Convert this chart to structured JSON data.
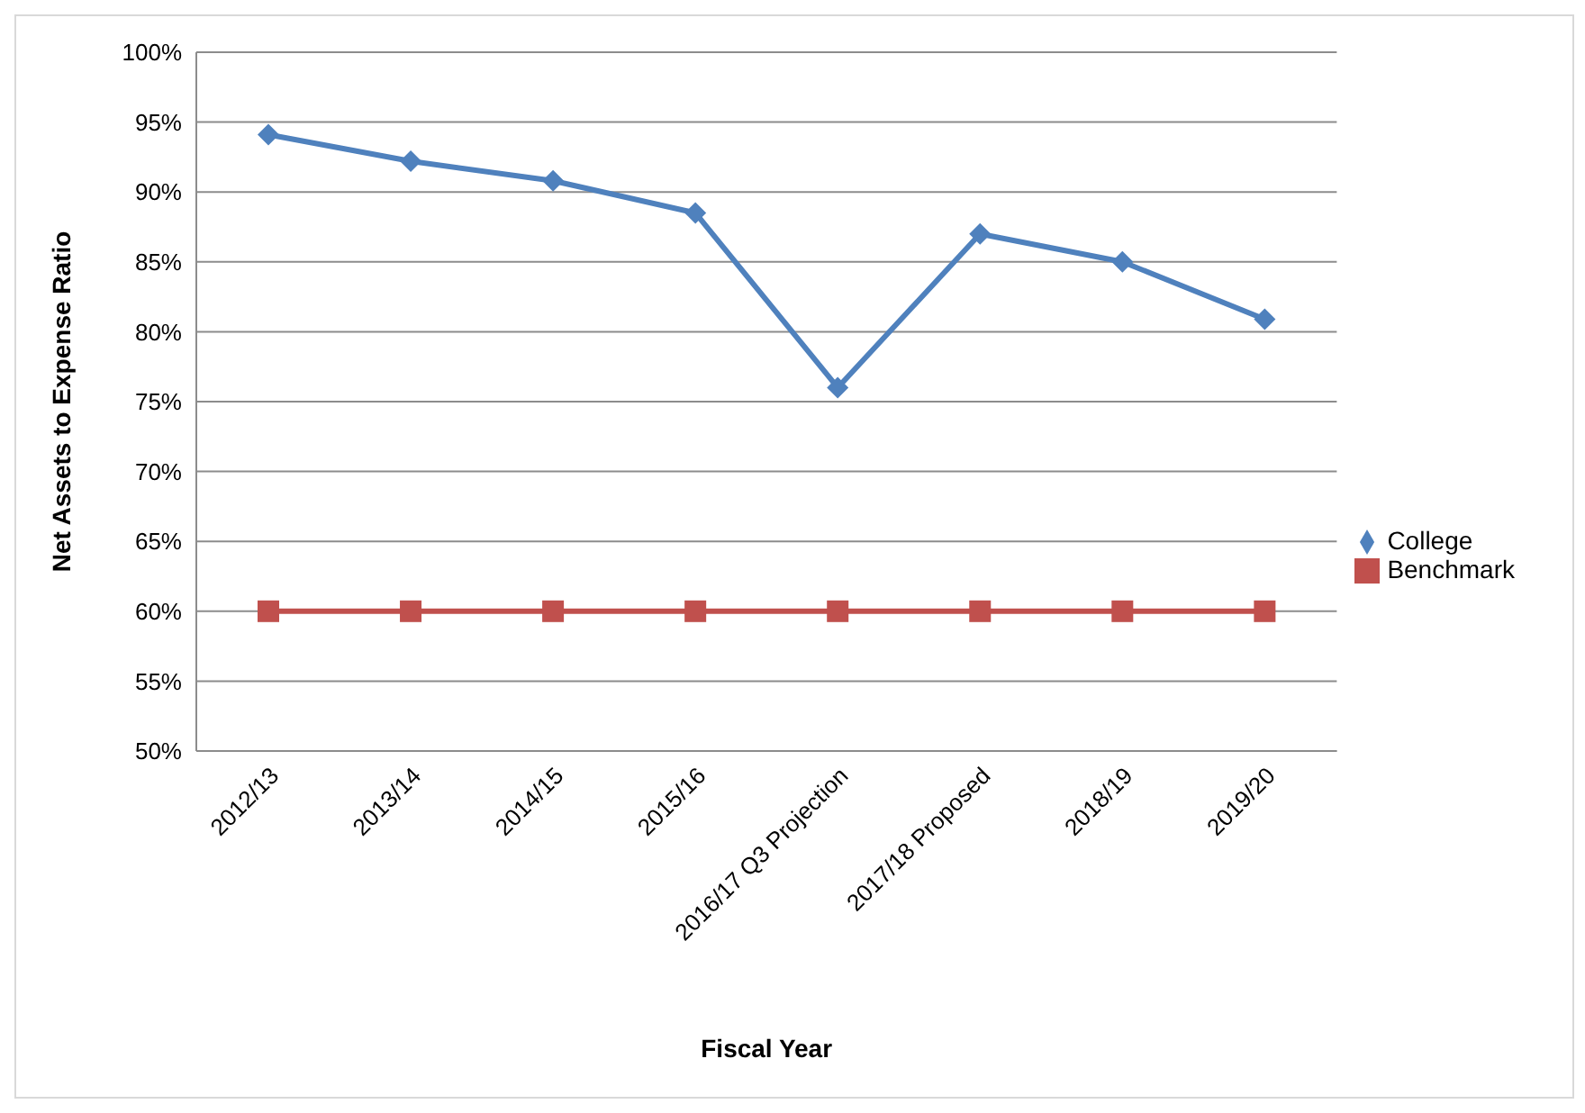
{
  "chart_data": {
    "type": "line",
    "xlabel": "Fiscal Year",
    "ylabel": "Net Assets to Expense Ratio",
    "categories": [
      "2012/13",
      "2013/14",
      "2014/15",
      "2015/16",
      "2016/17 Q3 Projection",
      "2017/18 Proposed",
      "2018/19",
      "2019/20"
    ],
    "series": [
      {
        "name": "College",
        "color": "#4f81bd",
        "marker": "diamond",
        "values": [
          94.1,
          92.2,
          90.8,
          88.5,
          76,
          87,
          85,
          80.9
        ]
      },
      {
        "name": "Benchmark",
        "color": "#c0504d",
        "marker": "square",
        "values": [
          60,
          60,
          60,
          60,
          60,
          60,
          60,
          60
        ]
      }
    ],
    "ylim": [
      50,
      100
    ],
    "yticks": [
      {
        "value": 50,
        "label": "50%"
      },
      {
        "value": 55,
        "label": "55%"
      },
      {
        "value": 60,
        "label": "60%"
      },
      {
        "value": 65,
        "label": "65%"
      },
      {
        "value": 70,
        "label": "70%"
      },
      {
        "value": 75,
        "label": "75%"
      },
      {
        "value": 80,
        "label": "80%"
      },
      {
        "value": 85,
        "label": "85%"
      },
      {
        "value": 90,
        "label": "90%"
      },
      {
        "value": 95,
        "label": "95%"
      },
      {
        "value": 100,
        "label": "100%"
      }
    ],
    "grid": "y",
    "legend": "right",
    "line_style": "solid"
  }
}
